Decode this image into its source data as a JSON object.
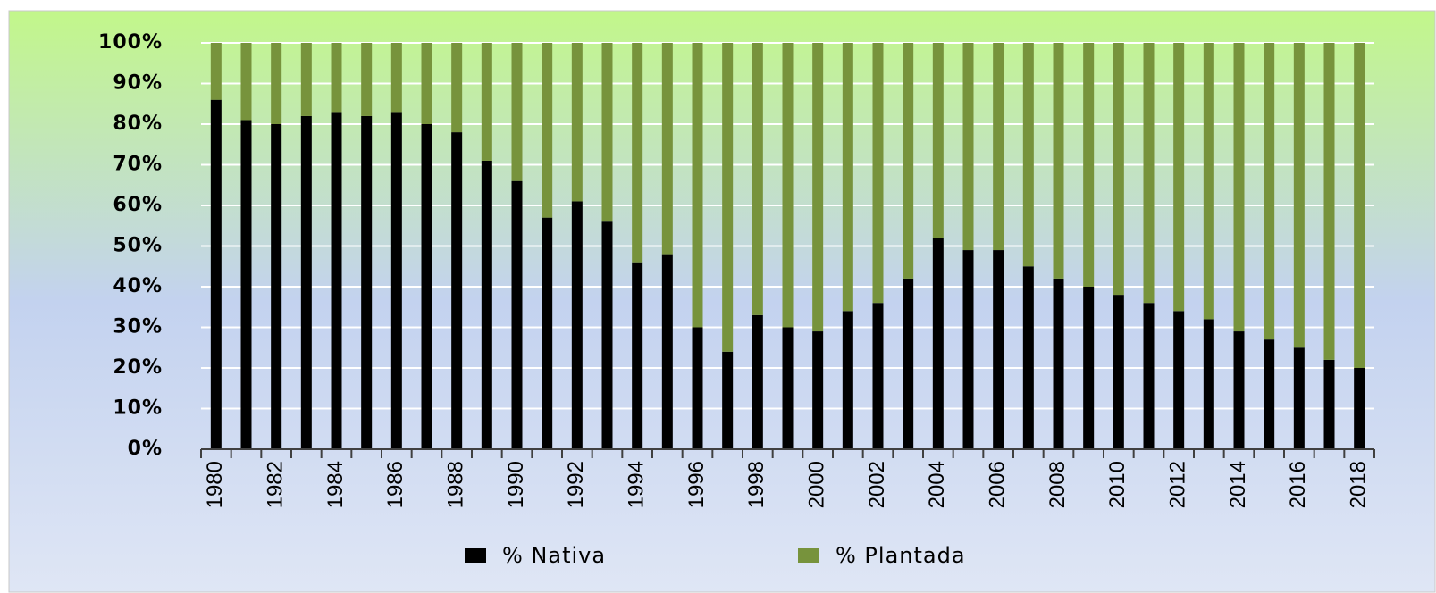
{
  "chart_data": {
    "type": "stacked_bar",
    "categories": [
      "1980",
      null,
      "1982",
      null,
      "1984",
      null,
      "1986",
      null,
      "1988",
      null,
      "1990",
      null,
      "1992",
      null,
      "1994",
      null,
      "1996",
      null,
      "1998",
      null,
      "2000",
      null,
      "2002",
      null,
      "2004",
      null,
      "2006",
      null,
      "2008",
      null,
      "2010",
      null,
      "2012",
      null,
      "2014",
      null,
      "2016",
      null,
      "2018"
    ],
    "series": [
      {
        "name": "% Nativa",
        "color": "#000000",
        "values": [
          86,
          81,
          80,
          82,
          83,
          82,
          83,
          80,
          78,
          71,
          66,
          57,
          61,
          56,
          46,
          48,
          30,
          24,
          33,
          30,
          29,
          34,
          36,
          42,
          52,
          49,
          49,
          45,
          42,
          40,
          38,
          36,
          34,
          32,
          29,
          27,
          25,
          22,
          20
        ]
      },
      {
        "name": "% Plantada",
        "color": "#77933c",
        "values": [
          14,
          19,
          20,
          18,
          17,
          18,
          17,
          20,
          22,
          29,
          34,
          43,
          39,
          44,
          54,
          52,
          70,
          76,
          67,
          70,
          71,
          66,
          64,
          58,
          48,
          51,
          51,
          55,
          58,
          60,
          62,
          64,
          66,
          68,
          71,
          73,
          75,
          78,
          80
        ]
      }
    ],
    "ylim": [
      0,
      100
    ],
    "yticks": [
      {
        "value": 0,
        "label": "0%"
      },
      {
        "value": 10,
        "label": "10%"
      },
      {
        "value": 20,
        "label": "20%"
      },
      {
        "value": 30,
        "label": "30%"
      },
      {
        "value": 40,
        "label": "40%"
      },
      {
        "value": 50,
        "label": "50%"
      },
      {
        "value": 60,
        "label": "60%"
      },
      {
        "value": 70,
        "label": "70%"
      },
      {
        "value": 80,
        "label": "80%"
      },
      {
        "value": 90,
        "label": "90%"
      },
      {
        "value": 100,
        "label": "100%"
      }
    ],
    "grid": true,
    "legend": "bottom"
  }
}
